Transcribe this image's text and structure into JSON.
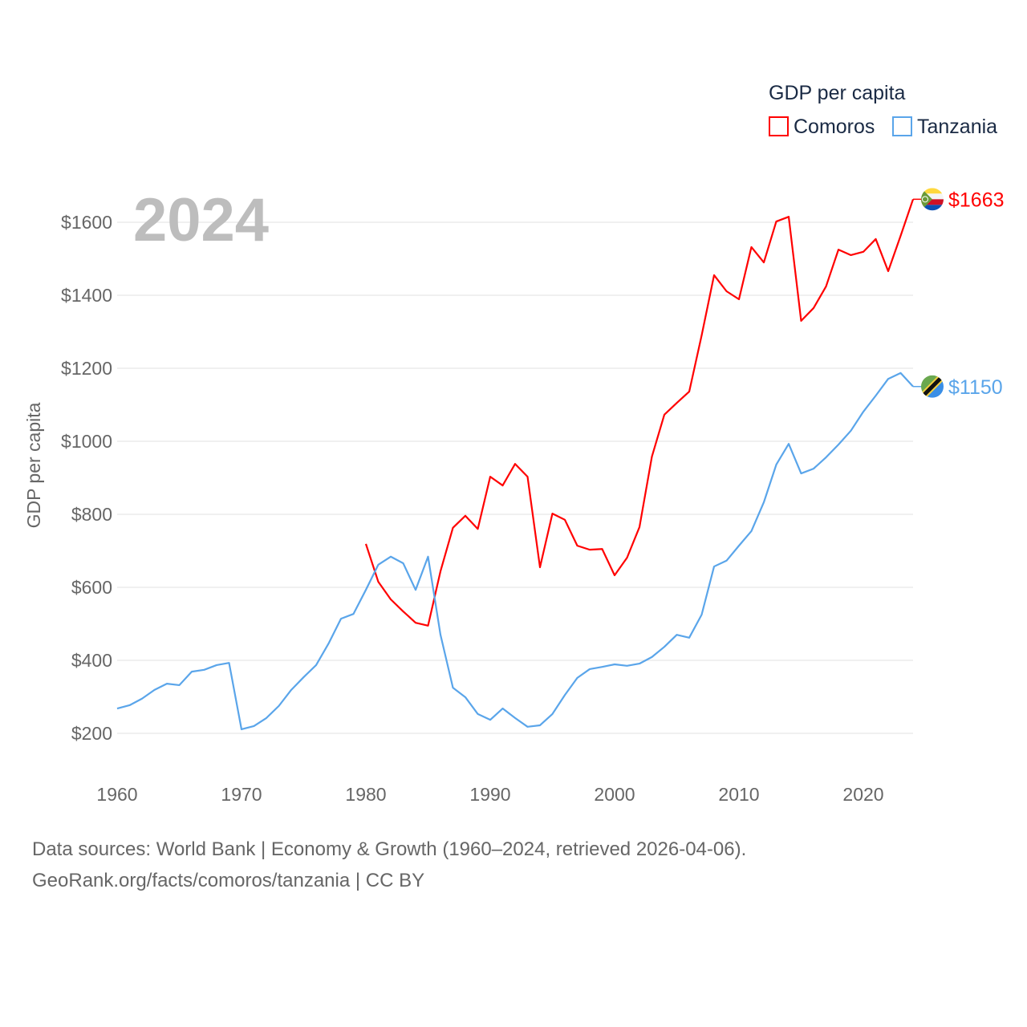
{
  "chart_data": {
    "type": "line",
    "title": "GDP per capita",
    "year_label": "2024",
    "ylabel": "GDP per capita",
    "xlabel": "",
    "xlim": [
      1960,
      2024
    ],
    "ylim": [
      100,
      1700
    ],
    "x_ticks": [
      1960,
      1970,
      1980,
      1990,
      2000,
      2010,
      2020
    ],
    "x_tick_labels": [
      "1960",
      "1970",
      "1980",
      "1990",
      "2000",
      "2010",
      "2020"
    ],
    "y_ticks": [
      200,
      400,
      600,
      800,
      1000,
      1200,
      1400,
      1600
    ],
    "y_tick_labels": [
      "$200",
      "$400",
      "$600",
      "$800",
      "$1000",
      "$1200",
      "$1400",
      "$1600"
    ],
    "grid": true,
    "legend_position": "top-right",
    "series": [
      {
        "name": "Comoros",
        "color": "#ff0000",
        "start_year": 1980,
        "end_label": "$1663",
        "values": [
          719,
          615,
          567,
          534,
          503,
          495,
          644,
          763,
          796,
          760,
          903,
          879,
          938,
          903,
          655,
          802,
          785,
          714,
          703,
          705,
          633,
          681,
          765,
          958,
          1073,
          1105,
          1136,
          1290,
          1455,
          1411,
          1389,
          1532,
          1490,
          1602,
          1615,
          1330,
          1365,
          1424,
          1525,
          1510,
          1519,
          1554,
          1466,
          1563,
          1663
        ]
      },
      {
        "name": "Tanzania",
        "color": "#5aa5ea",
        "start_year": 1960,
        "end_label": "$1150",
        "values": [
          268,
          277,
          295,
          319,
          336,
          332,
          369,
          374,
          387,
          393,
          211,
          220,
          242,
          275,
          319,
          354,
          387,
          446,
          514,
          527,
          593,
          662,
          684,
          666,
          593,
          684,
          470,
          325,
          299,
          253,
          237,
          268,
          242,
          218,
          222,
          253,
          305,
          352,
          376,
          382,
          389,
          385,
          391,
          409,
          437,
          470,
          462,
          525,
          657,
          673,
          714,
          754,
          833,
          936,
          993,
          912,
          925,
          956,
          991,
          1029,
          1081,
          1125,
          1171,
          1187,
          1150
        ]
      }
    ]
  },
  "footer": {
    "line1": "Data sources: World Bank | Economy & Growth (1960–2024, retrieved 2026-04-06).",
    "line2": "GeoRank.org/facts/comoros/tanzania | CC BY"
  }
}
